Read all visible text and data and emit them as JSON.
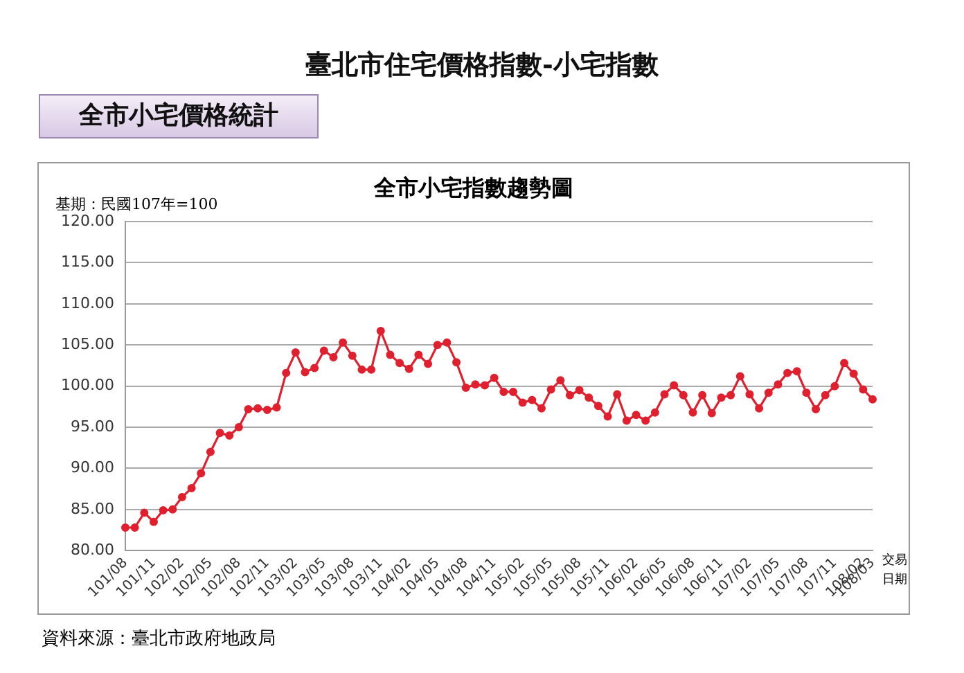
{
  "chart_data": {
    "type": "line",
    "title": "臺北市住宅價格指數-小宅指數",
    "subtitle": "全市小宅價格統計",
    "annotations": [
      "全市小宅指數趨勢圖",
      "基期：民國107年=100",
      "資料來源：臺北市政府地政局"
    ],
    "xlabel": "交易日期",
    "categories": [
      "101/08",
      null,
      null,
      "101/11",
      null,
      null,
      "102/02",
      null,
      null,
      "102/05",
      null,
      null,
      "102/08",
      null,
      null,
      "102/11",
      null,
      null,
      "103/02",
      null,
      null,
      "103/05",
      null,
      null,
      "103/08",
      null,
      null,
      "103/11",
      null,
      null,
      "104/02",
      null,
      null,
      "104/05",
      null,
      null,
      "104/08",
      null,
      null,
      "104/11",
      null,
      null,
      "105/02",
      null,
      null,
      "105/05",
      null,
      null,
      "105/08",
      null,
      null,
      "105/11",
      null,
      null,
      "106/02",
      null,
      null,
      "106/05",
      null,
      null,
      "106/08",
      null,
      null,
      "106/11",
      null,
      null,
      "107/02",
      null,
      null,
      "107/05",
      null,
      null,
      "107/08",
      null,
      null,
      "107/11",
      null,
      null,
      "108/02",
      "108/03"
    ],
    "series": [
      {
        "color": "#e0202e",
        "values": [
          82.8,
          82.8,
          84.6,
          83.5,
          84.9,
          85.0,
          86.5,
          87.6,
          89.4,
          92.0,
          94.3,
          94.0,
          95.0,
          97.2,
          97.3,
          97.1,
          97.4,
          101.6,
          104.1,
          101.7,
          102.2,
          104.3,
          103.5,
          105.3,
          103.7,
          102.0,
          102.0,
          106.7,
          103.8,
          102.8,
          102.1,
          103.8,
          102.7,
          105.0,
          105.3,
          102.9,
          99.8,
          100.2,
          100.1,
          101.0,
          99.3,
          99.3,
          98.0,
          98.3,
          97.3,
          99.6,
          100.7,
          98.9,
          99.5,
          98.6,
          97.6,
          96.3,
          99.0,
          95.8,
          96.5,
          95.8,
          96.8,
          99.0,
          100.1,
          98.9,
          96.8,
          98.9,
          96.7,
          98.6,
          98.9,
          101.2,
          99.0,
          97.3,
          99.2,
          100.2,
          101.6,
          101.8,
          99.2,
          97.2,
          98.9,
          100.0,
          102.8,
          101.5,
          99.6,
          98.4
        ]
      }
    ],
    "ylim": [
      80,
      120
    ],
    "yticks": [
      {
        "value": 80,
        "label": "80.00"
      },
      {
        "value": 85,
        "label": "85.00"
      },
      {
        "value": 90,
        "label": "90.00"
      },
      {
        "value": 95,
        "label": "95.00"
      },
      {
        "value": 100,
        "label": "100.00"
      },
      {
        "value": 105,
        "label": "105.00"
      },
      {
        "value": 110,
        "label": "110.00"
      },
      {
        "value": 115,
        "label": "115.00"
      },
      {
        "value": 120,
        "label": "120.00"
      }
    ],
    "grid": "y",
    "legend": false,
    "marker": "circle",
    "line_style": "solid"
  }
}
